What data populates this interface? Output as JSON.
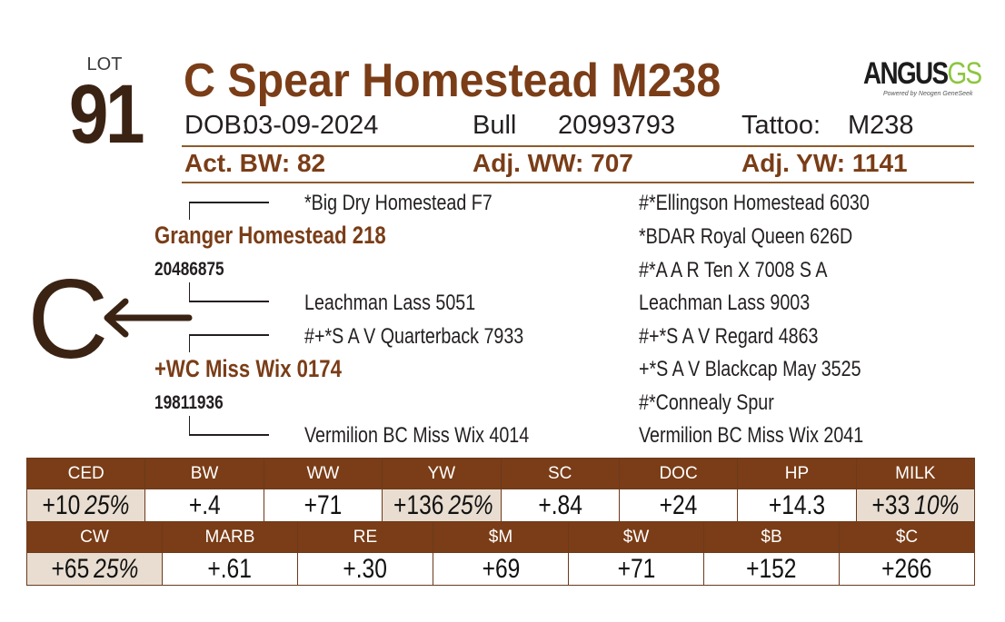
{
  "lot": {
    "label": "LOT",
    "number": "91"
  },
  "animal": {
    "name": "C Spear Homestead M238"
  },
  "logo": {
    "main": "ANGUS",
    "suffix": "GS",
    "sub": "Powered by Neogen GeneSeek"
  },
  "info": {
    "dob_label": "DOB:",
    "dob": "03-09-2024",
    "sex": "Bull",
    "registration": "20993793",
    "tattoo_label": "Tattoo:",
    "tattoo": "M238"
  },
  "performance": {
    "bw_label": "Act. BW:",
    "bw": "82",
    "ww_label": "Adj. WW:",
    "ww": "707",
    "yw_label": "Adj. YW:",
    "yw": "1141"
  },
  "pedigree": {
    "sire": {
      "name": "Granger Homestead 218",
      "reg": "20486875"
    },
    "sire_sire": "*Big Dry Homestead F7",
    "sire_dam": "Leachman Lass 5051",
    "sss": "#*Ellingson Homestead 6030",
    "ssd": "*BDAR Royal Queen 626D",
    "sds": "#*A A R Ten X 7008 S A",
    "sdd": "Leachman Lass 9003",
    "dam": {
      "name": "+WC Miss Wix 0174",
      "reg": "19811936"
    },
    "dam_sire": "#+*S A V Quarterback 7933",
    "dam_dam": "Vermilion BC Miss Wix 4014",
    "dss": "#+*S A V Regard 4863",
    "dsd": "+*S A V Blackcap May 3525",
    "dds": "#*Connealy Spur",
    "ddd": "Vermilion BC Miss Wix 2041"
  },
  "mark": {
    "letter": "C"
  },
  "epd_row1": {
    "headers": [
      "CED",
      "BW",
      "WW",
      "YW",
      "SC",
      "DOC",
      "HP",
      "MILK"
    ],
    "values": [
      "+10",
      "+.4",
      "+71",
      "+136",
      "+.84",
      "+24",
      "+14.3",
      "+33"
    ],
    "acc": [
      "25%",
      "",
      "",
      "25%",
      "",
      "",
      "",
      "10%"
    ]
  },
  "epd_row2": {
    "headers": [
      "CW",
      "MARB",
      "RE",
      "$M",
      "$W",
      "$B",
      "$C"
    ],
    "values": [
      "+65",
      "+.61",
      "+.30",
      "+69",
      "+71",
      "+152",
      "+266"
    ],
    "acc": [
      "25%",
      "",
      "",
      "",
      "",
      "",
      ""
    ]
  },
  "colors": {
    "brown": "#7a3d17",
    "dark_brown": "#3b2314",
    "highlight": "#e8ddd0",
    "logo_green": "#8cc63f"
  }
}
